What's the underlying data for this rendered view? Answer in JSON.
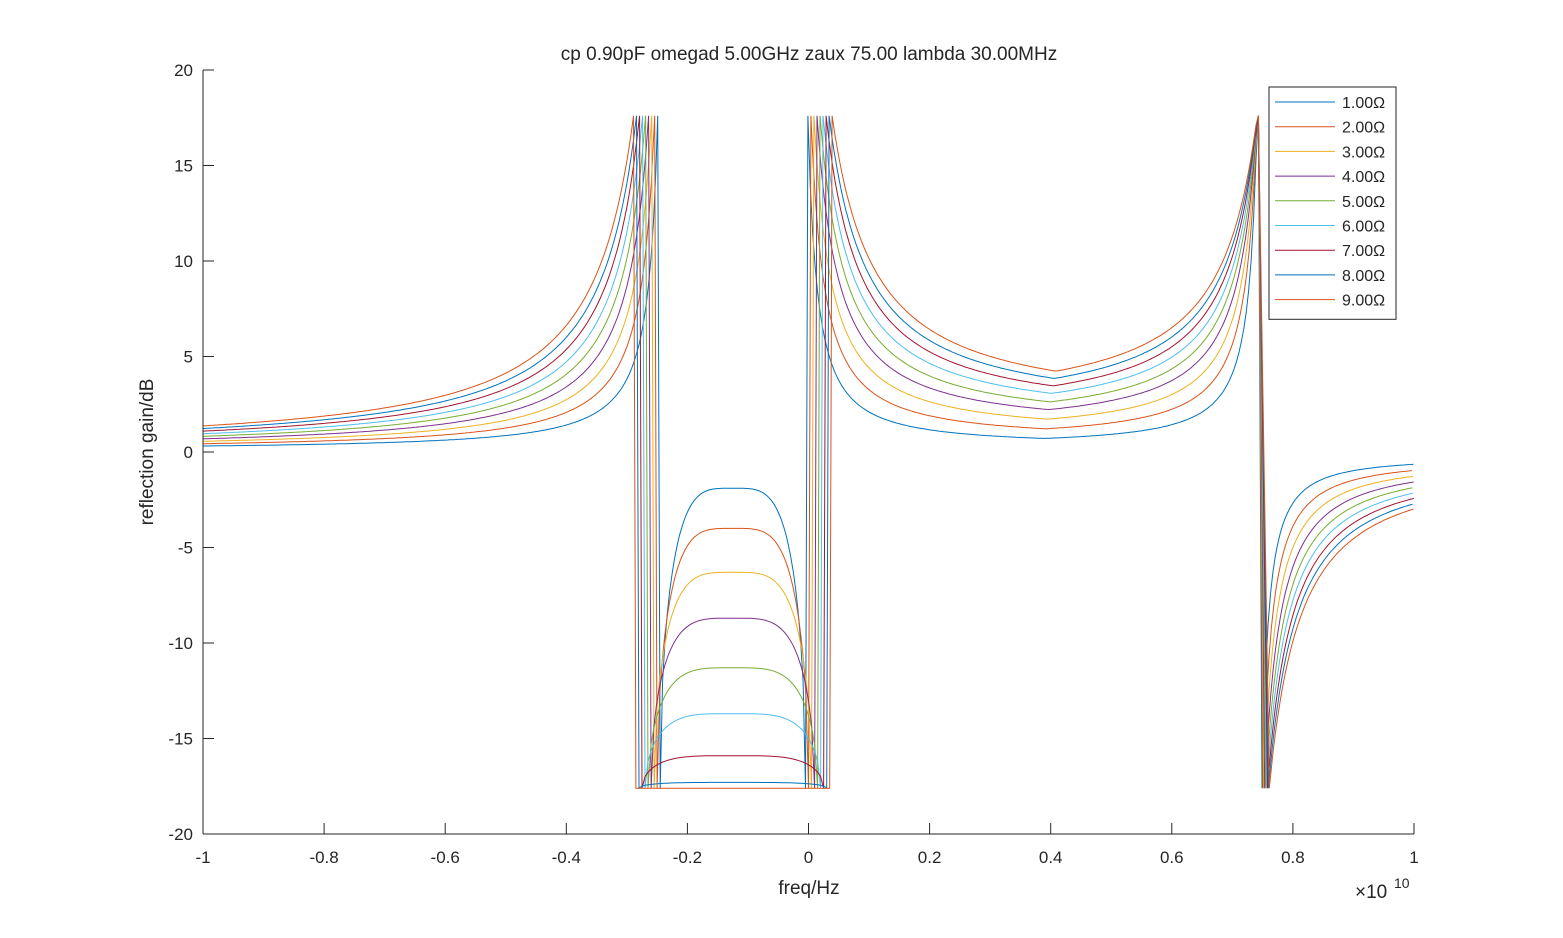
{
  "chart_data": {
    "type": "line",
    "title": "cp 0.90pF omegad 5.00GHz zaux 75.00 lambda 30.00MHz",
    "xlabel": "freq/Hz",
    "ylabel": "reflection gain/dB",
    "x_exponent_label": "×10",
    "x_exponent": "10",
    "xlim": [
      -1,
      1
    ],
    "ylim": [
      -20,
      20
    ],
    "x_ticks": [
      -1,
      -0.8,
      -0.6,
      -0.4,
      -0.2,
      0,
      0.2,
      0.4,
      0.6,
      0.8,
      1
    ],
    "x_tick_labels": [
      "-1",
      "-0.8",
      "-0.6",
      "-0.4",
      "-0.2",
      "0",
      "0.2",
      "0.4",
      "0.6",
      "0.8",
      "1"
    ],
    "y_ticks": [
      -20,
      -15,
      -10,
      -5,
      0,
      5,
      10,
      15,
      20
    ],
    "y_tick_labels": [
      "-20",
      "-15",
      "-10",
      "-5",
      "0",
      "5",
      "10",
      "15",
      "20"
    ],
    "grid": false,
    "legend_position": "top-right",
    "series": [
      {
        "name": "1.00Ω",
        "color": "#0072BD",
        "left_edge": -0.245,
        "right_edge": -0.005,
        "dip_floor": -1.9,
        "band_level": 0.3,
        "right_tail": -0.25
      },
      {
        "name": "2.00Ω",
        "color": "#D95319",
        "left_edge": -0.25,
        "right_edge": 0.0,
        "dip_floor": -4.0,
        "band_level": 0.6,
        "right_tail": -0.35
      },
      {
        "name": "3.00Ω",
        "color": "#EDB120",
        "left_edge": -0.255,
        "right_edge": 0.005,
        "dip_floor": -6.3,
        "band_level": 0.9,
        "right_tail": -0.42
      },
      {
        "name": "4.00Ω",
        "color": "#7E2F8E",
        "left_edge": -0.26,
        "right_edge": 0.01,
        "dip_floor": -8.7,
        "band_level": 1.2,
        "right_tail": -0.48
      },
      {
        "name": "5.00Ω",
        "color": "#77AC30",
        "left_edge": -0.265,
        "right_edge": 0.015,
        "dip_floor": -11.3,
        "band_level": 1.4,
        "right_tail": -0.53
      },
      {
        "name": "6.00Ω",
        "color": "#4DBEEE",
        "left_edge": -0.27,
        "right_edge": 0.02,
        "dip_floor": -13.7,
        "band_level": 1.65,
        "right_tail": -0.57
      },
      {
        "name": "7.00Ω",
        "color": "#A2142F",
        "left_edge": -0.275,
        "right_edge": 0.025,
        "dip_floor": -15.9,
        "band_level": 1.85,
        "right_tail": -0.61
      },
      {
        "name": "8.00Ω",
        "color": "#0072BD",
        "left_edge": -0.28,
        "right_edge": 0.03,
        "dip_floor": -17.3,
        "band_level": 2.05,
        "right_tail": -0.65
      },
      {
        "name": "9.00Ω",
        "color": "#D95319",
        "left_edge": -0.285,
        "right_edge": 0.035,
        "dip_floor": -17.6,
        "band_level": 2.25,
        "right_tail": -0.68
      }
    ],
    "peak_level": 17.6,
    "notch_level": -17.6,
    "resonance_x": 0.745
  }
}
